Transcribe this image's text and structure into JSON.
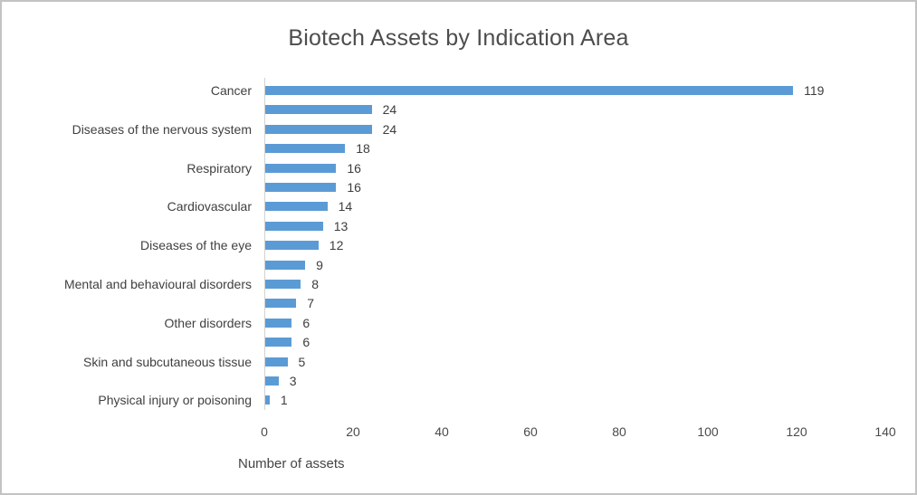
{
  "chart_data": {
    "type": "bar",
    "orientation": "horizontal",
    "title": "Biotech Assets by Indication Area",
    "xlabel": "Number of assets",
    "ylabel": "",
    "categories": [
      "Cancer",
      "",
      "Diseases of the nervous system",
      "",
      "Respiratory",
      "",
      "Cardiovascular",
      "",
      "Diseases of the eye",
      "",
      "Mental and behavioural disorders",
      "",
      "Other disorders",
      "",
      "Skin and subcutaneous tissue",
      "",
      "Physical injury or poisoning"
    ],
    "values": [
      119,
      24,
      24,
      18,
      16,
      16,
      14,
      13,
      12,
      9,
      8,
      7,
      6,
      6,
      5,
      3,
      1
    ],
    "data_labels": [
      119,
      24,
      24,
      18,
      16,
      16,
      14,
      13,
      12,
      9,
      8,
      7,
      6,
      6,
      5,
      3,
      1
    ],
    "xlim": [
      0,
      140
    ],
    "xticks": [
      0,
      20,
      40,
      60,
      80,
      100,
      120,
      140
    ],
    "gridlines": false,
    "legend": false,
    "bar_color": "#5b9bd5",
    "text_color": "#404040",
    "axis_line_color": "#d2d2d2",
    "background_color": "#ffffff",
    "border_color": "#c3c3c3"
  }
}
